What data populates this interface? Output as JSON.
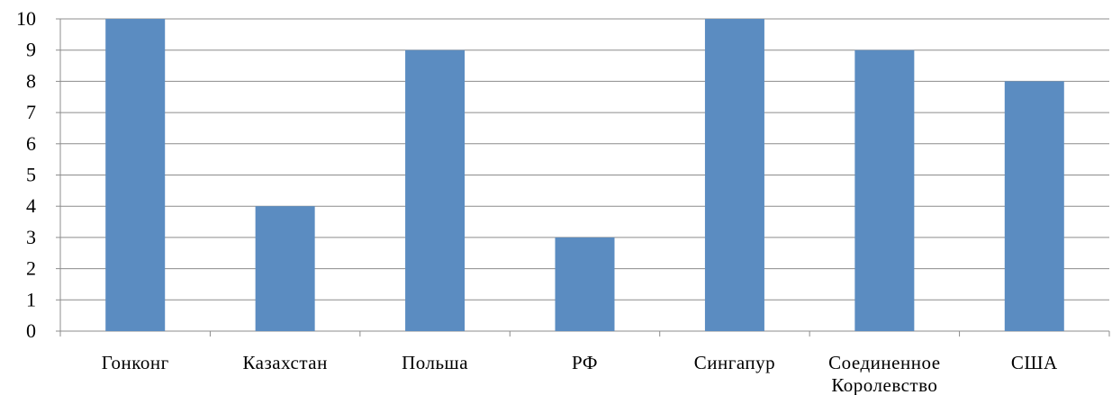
{
  "chart_data": {
    "type": "bar",
    "title": "",
    "xlabel": "",
    "ylabel": "",
    "ylim": [
      0,
      10
    ],
    "yticks": [
      "0",
      "1",
      "2",
      "3",
      "4",
      "5",
      "6",
      "7",
      "8",
      "9",
      "10"
    ],
    "grid": true,
    "legend": "none",
    "bar_color": "#5b8cc1",
    "grid_color": "#8c8c8c",
    "categories": [
      [
        "Гонконг"
      ],
      [
        "Казахстан"
      ],
      [
        "Польша"
      ],
      [
        "РФ"
      ],
      [
        "Сингапур"
      ],
      [
        "Соединенное",
        "Королевство"
      ],
      [
        "США"
      ]
    ],
    "values": [
      10,
      4,
      9,
      3,
      10,
      9,
      8
    ]
  }
}
